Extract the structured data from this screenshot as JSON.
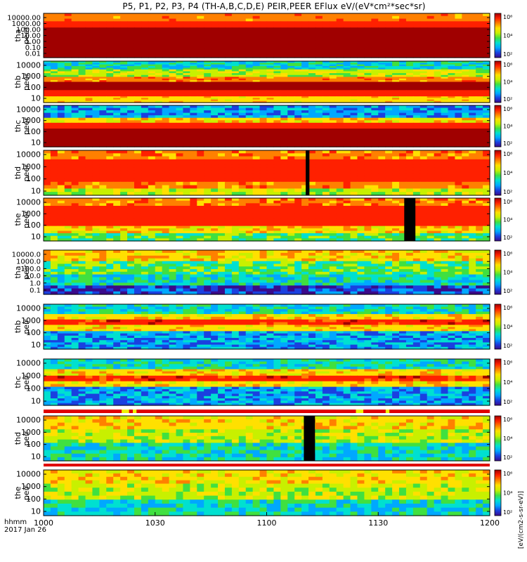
{
  "title": "P5, P1, P2, P3, P4 (TH-A,B,C,D,E) PEIR,PEER EFlux eV/(eV*cm²*sec*sr)",
  "colorbar_unit": "[eV/(cm2-s-sr-eV)]",
  "chart_data": {
    "type": "heatmap",
    "x_ticks": [
      "1000",
      "1030",
      "1100",
      "1130",
      "1200"
    ],
    "x_footer": [
      "hhmm",
      "2017 Jan 26"
    ],
    "colorbar_ticks": [
      "10⁶",
      "10⁴",
      "10²"
    ],
    "colormap": [
      "#3a0a8a",
      "#1a40e0",
      "#00a8ff",
      "#00e0d0",
      "#40e040",
      "#c8f000",
      "#ffe000",
      "#ff8000",
      "#ff2000",
      "#a00000"
    ],
    "panels": [
      {
        "id": "tha-peer",
        "probe": "tha",
        "species": "peer",
        "ylabels": [
          "10000.00",
          "1000.00",
          "100.00",
          "10.00",
          "1.00",
          "0.10",
          "0.01"
        ],
        "bands": [
          [
            0.0,
            0.18,
            7,
            0.6
          ],
          [
            0.18,
            0.32,
            8,
            0.4
          ],
          [
            0.32,
            0.55,
            9,
            0.3
          ],
          [
            0.55,
            1.0,
            9,
            0.1
          ]
        ]
      },
      {
        "id": "thb-peer",
        "probe": "thb",
        "species": "peer",
        "ylabels": [
          "10000",
          "1000",
          "100",
          "10"
        ],
        "bands": [
          [
            0.0,
            0.2,
            3,
            1.4
          ],
          [
            0.2,
            0.38,
            5,
            1.0
          ],
          [
            0.38,
            0.5,
            7,
            0.6
          ],
          [
            0.5,
            0.7,
            9,
            0.3
          ],
          [
            0.7,
            0.85,
            8,
            0.5
          ],
          [
            0.85,
            1.0,
            6,
            0.6
          ]
        ]
      },
      {
        "id": "thc-peer",
        "probe": "thc",
        "species": "peer",
        "ylabels": [
          "10000",
          "1000",
          "100",
          "10"
        ],
        "bands": [
          [
            0.0,
            0.3,
            2,
            1.4
          ],
          [
            0.3,
            0.42,
            6,
            1.0
          ],
          [
            0.42,
            0.56,
            8,
            0.5
          ],
          [
            0.56,
            1.0,
            9,
            0.2
          ]
        ]
      },
      {
        "id": "thd-peer",
        "probe": "thd",
        "species": "peer",
        "ylabels": [
          "10000",
          "1000",
          "100",
          "10"
        ],
        "bands": [
          [
            0.0,
            0.2,
            7,
            0.8
          ],
          [
            0.2,
            0.7,
            8,
            0.5
          ],
          [
            0.7,
            0.85,
            7,
            0.7
          ],
          [
            0.85,
            1.0,
            5,
            1.0
          ]
        ],
        "gaps": [
          [
            1110.5,
            1111.5
          ]
        ]
      },
      {
        "id": "the-peer",
        "probe": "the",
        "species": "peer",
        "ylabels": [
          "10000",
          "1000",
          "100",
          "10"
        ],
        "bands": [
          [
            0.0,
            0.18,
            7,
            0.8
          ],
          [
            0.18,
            0.65,
            8,
            0.5
          ],
          [
            0.65,
            0.82,
            6,
            1.0
          ],
          [
            0.82,
            1.0,
            4,
            1.2
          ]
        ],
        "gaps": [
          [
            1137,
            1140
          ]
        ]
      },
      {
        "id": "tha-peir",
        "probe": "tha",
        "species": "peir",
        "ylabels": [
          "10000.0",
          "1000.0",
          "100.0",
          "10.0",
          "1.0",
          "0.1"
        ],
        "bands": [
          [
            0.0,
            0.25,
            6,
            1.0
          ],
          [
            0.25,
            0.55,
            4,
            1.3
          ],
          [
            0.55,
            0.8,
            3,
            1.4
          ],
          [
            0.8,
            1.0,
            1,
            1.5
          ]
        ]
      },
      {
        "id": "thb-peir",
        "probe": "thb",
        "species": "peir",
        "ylabels": [
          "10000",
          "1000",
          "100",
          "10"
        ],
        "bands": [
          [
            0.0,
            0.22,
            3,
            1.2
          ],
          [
            0.22,
            0.34,
            6,
            0.8
          ],
          [
            0.34,
            0.46,
            8,
            0.6
          ],
          [
            0.46,
            0.6,
            6,
            0.8
          ],
          [
            0.6,
            1.0,
            2,
            1.4
          ]
        ]
      },
      {
        "id": "thc-peir",
        "probe": "thc",
        "species": "peir",
        "ylabels": [
          "10000",
          "1000",
          "100",
          "10"
        ],
        "bands": [
          [
            0.0,
            0.22,
            3,
            1.2
          ],
          [
            0.22,
            0.36,
            6,
            0.8
          ],
          [
            0.36,
            0.48,
            8,
            0.6
          ],
          [
            0.48,
            0.6,
            6,
            0.8
          ],
          [
            0.6,
            1.0,
            2,
            1.4
          ]
        ]
      },
      {
        "id": "thd-peir",
        "probe": "thd",
        "species": "peir",
        "ylabels": [
          "10000",
          "1000",
          "100",
          "10"
        ],
        "bands": [
          [
            0.0,
            0.3,
            6,
            0.8
          ],
          [
            0.3,
            0.6,
            5,
            1.0
          ],
          [
            0.6,
            1.0,
            3,
            1.4
          ]
        ],
        "gaps": [
          [
            1110,
            1113
          ]
        ]
      },
      {
        "id": "the-peir",
        "probe": "the",
        "species": "peir",
        "ylabels": [
          "10000",
          "1000",
          "100",
          "10"
        ],
        "bands": [
          [
            0.0,
            0.3,
            6,
            0.9
          ],
          [
            0.3,
            0.65,
            5,
            1.0
          ],
          [
            0.65,
            1.0,
            3,
            1.3
          ]
        ]
      }
    ]
  }
}
